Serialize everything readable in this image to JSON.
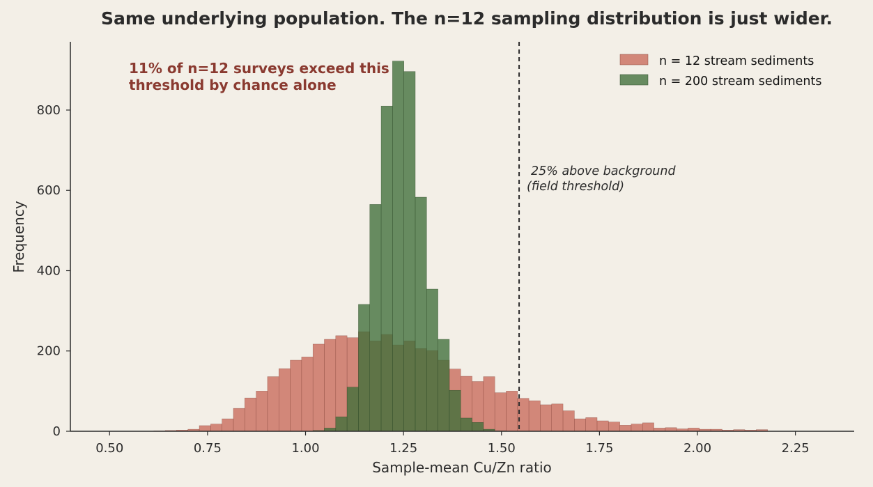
{
  "colors": {
    "background": "#f3efe7",
    "series_n12": "#c8695a",
    "series_n200": "#3f6e3a",
    "annotation": "#8a3a30",
    "axis": "#2b2b2b"
  },
  "chart_data": {
    "type": "bar",
    "title": "Same underlying population. The n=12 sampling distribution is just wider.",
    "xlabel": "Sample-mean Cu/Zn ratio",
    "ylabel": "Frequency",
    "xlim": [
      0.4,
      2.4
    ],
    "ylim": [
      0,
      970
    ],
    "xticks": [
      0.5,
      0.75,
      1.0,
      1.25,
      1.5,
      1.75,
      2.0,
      2.25
    ],
    "xtick_labels": [
      "0.50",
      "0.75",
      "1.00",
      "1.25",
      "1.50",
      "1.75",
      "2.00",
      "2.25"
    ],
    "yticks": [
      0,
      200,
      400,
      600,
      800
    ],
    "ytick_labels": [
      "0",
      "200",
      "400",
      "600",
      "800"
    ],
    "grid": false,
    "legend_position": "top-right",
    "bin_start": 0.41,
    "bin_width": 0.029,
    "series": [
      {
        "name": "n = 12 stream sediments",
        "values": [
          0,
          0,
          0,
          0,
          0,
          0,
          0,
          1,
          2,
          3,
          5,
          14,
          18,
          31,
          57,
          83,
          100,
          136,
          156,
          177,
          185,
          217,
          229,
          238,
          233,
          248,
          225,
          241,
          215,
          225,
          206,
          201,
          177,
          155,
          137,
          124,
          136,
          96,
          100,
          82,
          76,
          66,
          68,
          51,
          31,
          34,
          26,
          23,
          15,
          18,
          21,
          8,
          9,
          6,
          8,
          5,
          5,
          3,
          4,
          3,
          4,
          0,
          0,
          0,
          0,
          0,
          0,
          0
        ]
      },
      {
        "name": "n = 200 stream sediments",
        "values": [
          0,
          0,
          0,
          0,
          0,
          0,
          0,
          0,
          0,
          0,
          0,
          0,
          0,
          0,
          0,
          0,
          0,
          0,
          0,
          0,
          0,
          2,
          8,
          36,
          110,
          316,
          565,
          810,
          922,
          896,
          583,
          354,
          229,
          102,
          33,
          22,
          5,
          1,
          0,
          0,
          0,
          0,
          0,
          0,
          0,
          0,
          0,
          0,
          0,
          0,
          0,
          0,
          0,
          0,
          0,
          0,
          0,
          0,
          0,
          0,
          0,
          0,
          0,
          0,
          0,
          0,
          0,
          0
        ]
      }
    ],
    "threshold": {
      "x": 1.545,
      "label_line1": "25% above background",
      "label_line2": "(field threshold)"
    },
    "annotation": {
      "line1": "11% of n=12 surveys exceed this",
      "line2": "threshold by chance alone"
    }
  }
}
